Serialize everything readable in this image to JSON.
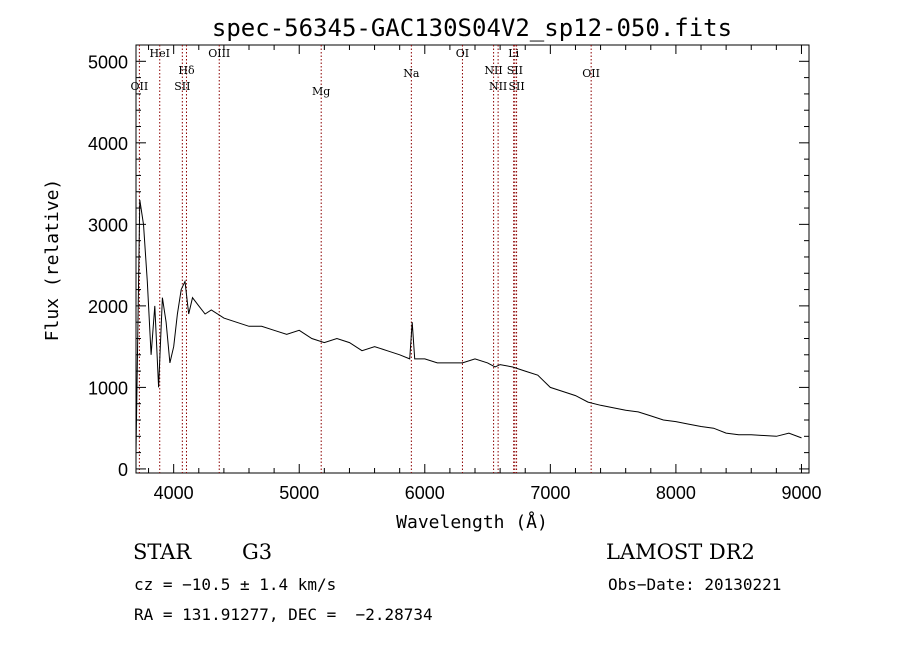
{
  "chart_data": {
    "type": "line",
    "title": "spec-56345-GAC130S04V2_sp12-050.fits",
    "xlabel": "Wavelength (Å)",
    "ylabel": "Flux (relative)",
    "xlim": [
      3700,
      9060
    ],
    "ylim": [
      -50,
      5200
    ],
    "xticks": [
      4000,
      5000,
      6000,
      7000,
      8000,
      9000
    ],
    "yticks": [
      0,
      1000,
      2000,
      3000,
      4000,
      5000
    ],
    "grid": false,
    "line_color": "#000000",
    "marker_color": "#8b0000",
    "lines": [
      {
        "name": "OII",
        "x": 3727
      },
      {
        "name": "HeI",
        "x": 3889
      },
      {
        "name": "Hδ",
        "x": 4102
      },
      {
        "name": "SII",
        "x": 4069
      },
      {
        "name": "OIII",
        "x": 4363
      },
      {
        "name": "Mg",
        "x": 5175
      },
      {
        "name": "Na",
        "x": 5893
      },
      {
        "name": "OI",
        "x": 6300
      },
      {
        "name": "NII",
        "x": 6548
      },
      {
        "name": "NII",
        "x": 6584
      },
      {
        "name": "Li",
        "x": 6708
      },
      {
        "name": "SII",
        "x": 6717
      },
      {
        "name": "SII",
        "x": 6731
      },
      {
        "name": "OII",
        "x": 7325
      }
    ],
    "series": [
      {
        "x": [
          3700,
          3730,
          3760,
          3790,
          3820,
          3850,
          3880,
          3910,
          3940,
          3970,
          4000,
          4030,
          4060,
          4090,
          4120,
          4150,
          4200,
          4250,
          4300,
          4400,
          4500,
          4600,
          4700,
          4800,
          4900,
          5000,
          5100,
          5200,
          5300,
          5400,
          5500,
          5600,
          5700,
          5800,
          5880,
          5900,
          5920,
          6000,
          6100,
          6200,
          6300,
          6400,
          6500,
          6560,
          6600,
          6700,
          6800,
          6900,
          7000,
          7100,
          7200,
          7300,
          7400,
          7500,
          7600,
          7700,
          7800,
          7900,
          8000,
          8100,
          8200,
          8300,
          8400,
          8500,
          8600,
          8700,
          8800,
          8900,
          9000
        ],
        "y": [
          200,
          3300,
          3000,
          2300,
          1400,
          2000,
          1000,
          2100,
          1800,
          1300,
          1500,
          1900,
          2200,
          2300,
          1900,
          2100,
          2000,
          1900,
          1950,
          1850,
          1800,
          1750,
          1750,
          1700,
          1650,
          1700,
          1600,
          1550,
          1600,
          1550,
          1450,
          1500,
          1450,
          1400,
          1350,
          1800,
          1350,
          1350,
          1300,
          1300,
          1300,
          1350,
          1300,
          1250,
          1280,
          1250,
          1200,
          1150,
          1000,
          950,
          900,
          820,
          780,
          750,
          720,
          700,
          650,
          600,
          580,
          550,
          520,
          500,
          440,
          420,
          420,
          410,
          400,
          440,
          380
        ]
      }
    ]
  },
  "info": {
    "object_type": "STAR",
    "subclass": "G3",
    "survey": "LAMOST DR2",
    "redshift": "cz = −10.5 ± 1.4 km/s",
    "obs_date": "Obs−Date: 20130221",
    "coords": "RA = 131.91277, DEC =  −2.28734"
  }
}
